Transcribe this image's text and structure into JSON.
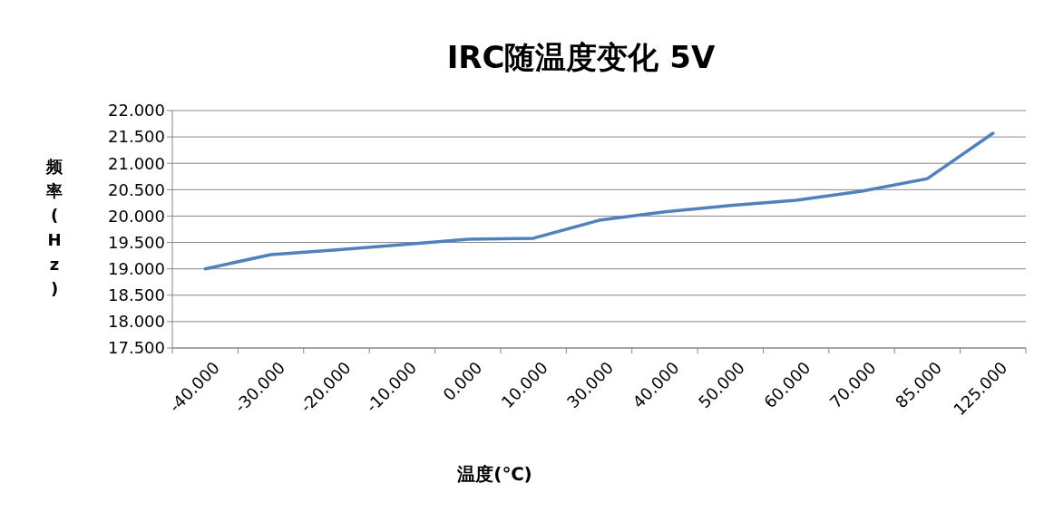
{
  "chart_data": {
    "type": "line",
    "title": "IRC随温度变化  5V",
    "xlabel": "温度(℃)",
    "ylabel": "频率(Hz)",
    "categories": [
      "-40.000",
      "-30.000",
      "-20.000",
      "-10.000",
      "0.000",
      "10.000",
      "30.000",
      "40.000",
      "50.000",
      "60.000",
      "70.000",
      "85.000",
      "125.000"
    ],
    "series": [
      {
        "color": "#4f81bd",
        "values": [
          19.0,
          19.27,
          19.36,
          19.46,
          19.56,
          19.58,
          19.92,
          20.08,
          20.2,
          20.3,
          20.47,
          20.71,
          21.57
        ]
      }
    ],
    "ylim": [
      17.5,
      22
    ],
    "yticks": [
      {
        "value": 17.5,
        "label": "17.500"
      },
      {
        "value": 18,
        "label": "18.000"
      },
      {
        "value": 18.5,
        "label": "18.500"
      },
      {
        "value": 19,
        "label": "19.000"
      },
      {
        "value": 19.5,
        "label": "19.500"
      },
      {
        "value": 20,
        "label": "20.000"
      },
      {
        "value": 20.5,
        "label": "20.500"
      },
      {
        "value": 21,
        "label": "21.000"
      },
      {
        "value": 21.5,
        "label": "21.500"
      },
      {
        "value": 22,
        "label": "22.000"
      }
    ],
    "grid": "y",
    "marker": "none",
    "line_style": "solid"
  }
}
